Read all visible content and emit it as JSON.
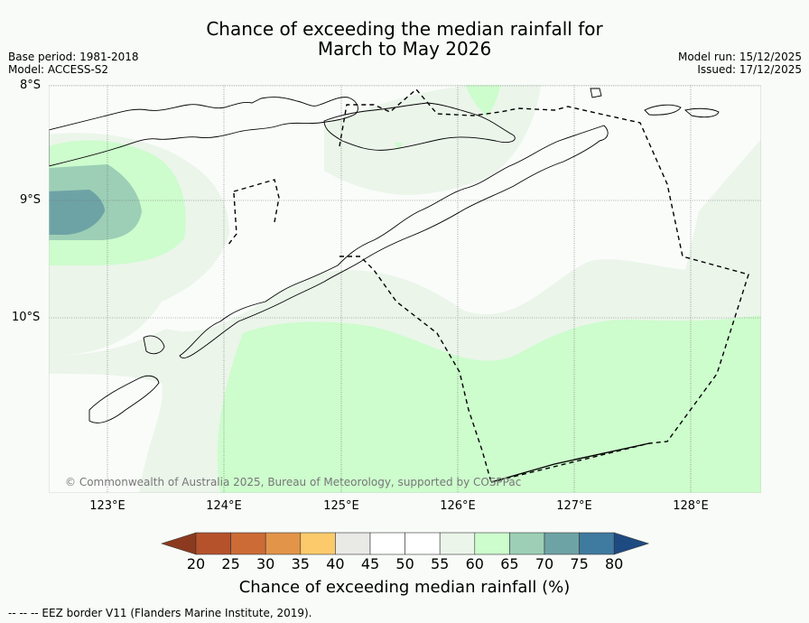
{
  "title": {
    "line1": "Chance of exceeding the median rainfall for",
    "line2": "March to May 2026"
  },
  "meta_left": {
    "base_period": "Base period: 1981-2018",
    "model": "Model: ACCESS-S2"
  },
  "meta_right": {
    "model_run": "Model run: 15/12/2025",
    "issued": "Issued: 17/12/2025"
  },
  "map": {
    "lat_labels": [
      "8°S",
      "9°S",
      "10°S"
    ],
    "lon_labels": [
      "123°E",
      "124°E",
      "125°E",
      "126°E",
      "127°E",
      "128°E"
    ],
    "copyright": "© Commonwealth of Australia 2025, Bureau of Meteorology, supported by COSPPac"
  },
  "colorbar": {
    "ticks": [
      "20",
      "25",
      "30",
      "35",
      "40",
      "45",
      "50",
      "55",
      "60",
      "65",
      "70",
      "75",
      "80"
    ],
    "colors": [
      "#8b3a1f",
      "#b5522c",
      "#cc6b36",
      "#e29449",
      "#fcca6b",
      "#e9e9e6",
      "#ffffff",
      "#ffffff",
      "#ebf5ea",
      "#cdfccd",
      "#9ccfb6",
      "#6ea3a6",
      "#3f7aa0",
      "#1e4a82"
    ],
    "title": "Chance of exceeding median rainfall (%)"
  },
  "footer": {
    "legend_text": "--  --  -- EEZ border V11 (Flanders Marine Institute, 2019)."
  }
}
